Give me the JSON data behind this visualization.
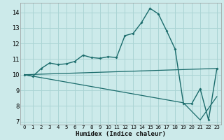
{
  "xlabel": "Humidex (Indice chaleur)",
  "bg_color": "#cceaea",
  "grid_color": "#aad4d4",
  "line_color": "#1a6b6b",
  "xlim": [
    -0.5,
    23.5
  ],
  "ylim": [
    6.8,
    14.6
  ],
  "yticks": [
    7,
    8,
    9,
    10,
    11,
    12,
    13,
    14
  ],
  "xticks": [
    0,
    1,
    2,
    3,
    4,
    5,
    6,
    7,
    8,
    9,
    10,
    11,
    12,
    13,
    14,
    15,
    16,
    17,
    18,
    19,
    20,
    21,
    22,
    23
  ],
  "line1_x": [
    0,
    1,
    2,
    3,
    4,
    5,
    6,
    7,
    8,
    9,
    10,
    11,
    12,
    13,
    14,
    15,
    16,
    17,
    18,
    19,
    20,
    21,
    22,
    23
  ],
  "line1_y": [
    10.0,
    9.9,
    10.4,
    10.75,
    10.65,
    10.7,
    10.85,
    11.25,
    11.1,
    11.05,
    11.15,
    11.1,
    12.5,
    12.65,
    13.35,
    14.25,
    13.9,
    12.8,
    11.65,
    8.15,
    8.15,
    9.1,
    7.1,
    10.4
  ],
  "line2_x": [
    0,
    23
  ],
  "line2_y": [
    10.0,
    10.4
  ],
  "line3_x": [
    0,
    19,
    21,
    23
  ],
  "line3_y": [
    10.0,
    8.2,
    7.1,
    8.6
  ]
}
